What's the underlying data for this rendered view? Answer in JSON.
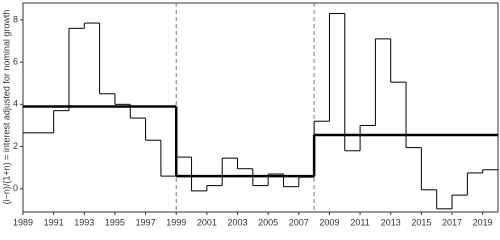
{
  "chart_data": {
    "type": "step",
    "y_label": "(i−n)/(1+n) = interest adjusted for nominal growth",
    "x": [
      1989,
      1990,
      1991,
      1992,
      1993,
      1994,
      1995,
      1996,
      1997,
      1998,
      1999,
      2000,
      2001,
      2002,
      2003,
      2004,
      2005,
      2006,
      2007,
      2008,
      2009,
      2010,
      2011,
      2012,
      2013,
      2014,
      2015,
      2016,
      2017,
      2018,
      2019
    ],
    "values": [
      2.65,
      2.65,
      3.7,
      7.6,
      7.85,
      4.5,
      4.0,
      3.35,
      2.3,
      0.6,
      1.5,
      -0.1,
      0.15,
      1.45,
      0.95,
      0.15,
      0.7,
      0.1,
      0.55,
      3.2,
      8.3,
      1.8,
      3.0,
      7.1,
      5.05,
      1.95,
      -0.05,
      -0.95,
      -0.3,
      0.75,
      0.9
    ],
    "color": "#000000",
    "periods": [
      {
        "start": 1989,
        "end": 1999,
        "value": 3.9
      },
      {
        "start": 1999,
        "end": 2008,
        "value": 0.6
      },
      {
        "start": 2008,
        "end": 2020,
        "value": 2.55
      }
    ],
    "vlines": [
      1999,
      2008
    ],
    "xlim": [
      1989,
      2020
    ],
    "ylim": [
      -1.1,
      8.8
    ],
    "xticks": [
      1989,
      1991,
      1993,
      1995,
      1997,
      1999,
      2001,
      2003,
      2005,
      2007,
      2009,
      2011,
      2013,
      2015,
      2017,
      2019
    ],
    "yticks": [
      0,
      2,
      4,
      6,
      8
    ]
  }
}
